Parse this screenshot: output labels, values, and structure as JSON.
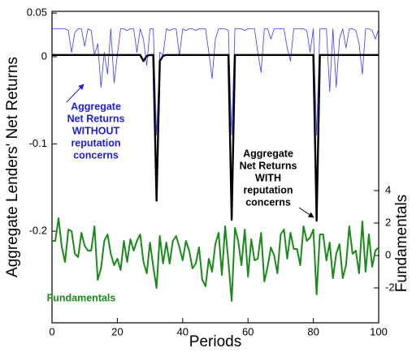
{
  "chart_data": {
    "type": "line",
    "xlabel": "Periods",
    "ylabel": "Aggregate Lenders' Net Returns",
    "y2label": "Fundamentals",
    "x": [
      0,
      1,
      2,
      3,
      4,
      5,
      6,
      7,
      8,
      9,
      10,
      11,
      12,
      13,
      14,
      15,
      16,
      17,
      18,
      19,
      20,
      21,
      22,
      23,
      24,
      25,
      26,
      27,
      28,
      29,
      30,
      31,
      32,
      33,
      34,
      35,
      36,
      37,
      38,
      39,
      40,
      41,
      42,
      43,
      44,
      45,
      46,
      47,
      48,
      49,
      50,
      51,
      52,
      53,
      54,
      55,
      56,
      57,
      58,
      59,
      60,
      61,
      62,
      63,
      64,
      65,
      66,
      67,
      68,
      69,
      70,
      71,
      72,
      73,
      74,
      75,
      76,
      77,
      78,
      79,
      80,
      81,
      82,
      83,
      84,
      85,
      86,
      87,
      88,
      89,
      90,
      91,
      92,
      93,
      94,
      95,
      96,
      97,
      98,
      99,
      100
    ],
    "xlim": [
      0,
      100
    ],
    "xticks": [
      0,
      20,
      40,
      60,
      80,
      100
    ],
    "ylim": [
      -0.305,
      0.052
    ],
    "yticks": [
      -0.2,
      -0.1,
      0,
      0.05
    ],
    "y2lim": [
      -4.15,
      15.05
    ],
    "y2ticks": [
      -2,
      0,
      2,
      4
    ],
    "series": [
      {
        "name": "Aggregate Net Returns WITHOUT reputation concerns",
        "color": "#3a3af5",
        "values": [
          0.032,
          0.032,
          0.032,
          0.032,
          0.032,
          0.03,
          0.005,
          0.028,
          0.032,
          0.032,
          0.012,
          0.032,
          0.03,
          0.002,
          0.015,
          -0.035,
          0.005,
          -0.02,
          0.032,
          -0.03,
          0.002,
          0.032,
          0.032,
          0.03,
          0.032,
          0.032,
          0.005,
          0.032,
          0.02,
          -0.01,
          0.032,
          0.032,
          -0.09,
          0.005,
          0.002,
          0.032,
          0.03,
          0.032,
          0.032,
          0.001,
          0.032,
          0.03,
          0.032,
          0.032,
          0.03,
          0.032,
          0.032,
          0.032,
          0.005,
          -0.025,
          0.02,
          0.032,
          0.032,
          0.032,
          0.03,
          -0.09,
          0.032,
          0.032,
          0.032,
          0.03,
          0.032,
          0.032,
          0.032,
          0.005,
          -0.018,
          0.032,
          0.032,
          0.02,
          0.032,
          0.032,
          0.032,
          0.032,
          0.01,
          -0.005,
          0.032,
          0.032,
          0.032,
          0.032,
          0.03,
          0.005,
          0.032,
          -0.09,
          0.032,
          0.032,
          0.032,
          -0.04,
          0.032,
          -0.035,
          0.02,
          0.032,
          0.01,
          0.032,
          0.032,
          0.03,
          0.015,
          -0.02,
          0.032,
          0.032,
          0.03,
          0.02,
          0.032
        ]
      },
      {
        "name": "Aggregate Net Returns WITH reputation concerns",
        "color": "#000000",
        "values": [
          0.002,
          0.002,
          0.002,
          0.002,
          0.002,
          0.002,
          0.002,
          0.002,
          0.002,
          0.002,
          0.002,
          0.002,
          0.002,
          0.002,
          0.002,
          0.002,
          0.002,
          0.002,
          0.002,
          0.002,
          0.002,
          0.002,
          0.002,
          0.002,
          0.002,
          0.002,
          0.002,
          0.002,
          -0.005,
          0.001,
          0.002,
          0.002,
          -0.165,
          -0.005,
          0.001,
          0.002,
          0.002,
          0.002,
          0.002,
          0.002,
          0.002,
          0.002,
          0.002,
          0.002,
          0.002,
          0.002,
          0.002,
          0.002,
          0.002,
          0.002,
          0.002,
          0.002,
          0.002,
          0.002,
          0.002,
          -0.187,
          0.002,
          0.002,
          0.002,
          0.002,
          0.002,
          0.002,
          0.002,
          0.002,
          0.002,
          0.002,
          0.002,
          0.002,
          0.002,
          0.002,
          0.002,
          0.002,
          0.002,
          0.002,
          0.002,
          0.002,
          0.002,
          0.002,
          0.002,
          0.002,
          0.002,
          -0.188,
          0.002,
          0.002,
          0.002,
          0.002,
          0.002,
          0.002,
          0.002,
          0.002,
          0.002,
          0.002,
          0.002,
          0.002,
          0.002,
          0.002,
          0.002,
          0.002,
          0.002,
          0.002,
          0.002
        ]
      },
      {
        "name": "Fundamentals",
        "color": "#1a8a1a",
        "axis": "y2",
        "values": [
          0.9,
          0.9,
          2.3,
          0.5,
          -0.4,
          1.6,
          1.5,
          0.1,
          -0.1,
          1.4,
          0.6,
          0.3,
          0.3,
          1.8,
          -1.5,
          -0.8,
          0.9,
          1.3,
          0.1,
          -0.6,
          -0.2,
          -0.9,
          0.9,
          -0.4,
          1,
          0.3,
          0.9,
          1.3,
          -0.4,
          -1.1,
          0.8,
          -0.7,
          -2,
          1.2,
          -0.5,
          0.8,
          -0.5,
          0.9,
          1.2,
          0.5,
          -0.3,
          0.9,
          0.3,
          -0.8,
          -0.5,
          0.5,
          -1.5,
          -1.9,
          -0.2,
          -1,
          0.7,
          1.4,
          -1.2,
          1.8,
          -0.4,
          -2.8,
          1.7,
          0.9,
          -0.6,
          1.6,
          -1.3,
          1,
          -0.3,
          -0.2,
          1.4,
          -1.6,
          -0.7,
          0.5,
          0,
          -1.1,
          1.3,
          1.6,
          -0.2,
          1.4,
          0.4,
          0.4,
          -0.6,
          1.8,
          0.9,
          1.1,
          1.6,
          -2.4,
          1.3,
          1.3,
          -0.3,
          0.8,
          -1.4,
          0.1,
          0.7,
          -1.4,
          -0.6,
          1.8,
          0.1,
          0.3,
          -1.1,
          2.1,
          -1,
          1.3,
          -0.7,
          0.3,
          0.5
        ]
      }
    ],
    "annotations": [
      {
        "text": [
          "Aggregate",
          "Net Returns",
          "WITHOUT",
          "reputation",
          "concerns"
        ],
        "color": "#2020d0"
      },
      {
        "text": [
          "Aggregate",
          "Net Returns",
          "WITH",
          "reputation",
          "concerns"
        ],
        "color": "#000000"
      },
      {
        "text": [
          "Fundamentals"
        ],
        "color": "#1a8a1a"
      }
    ]
  }
}
